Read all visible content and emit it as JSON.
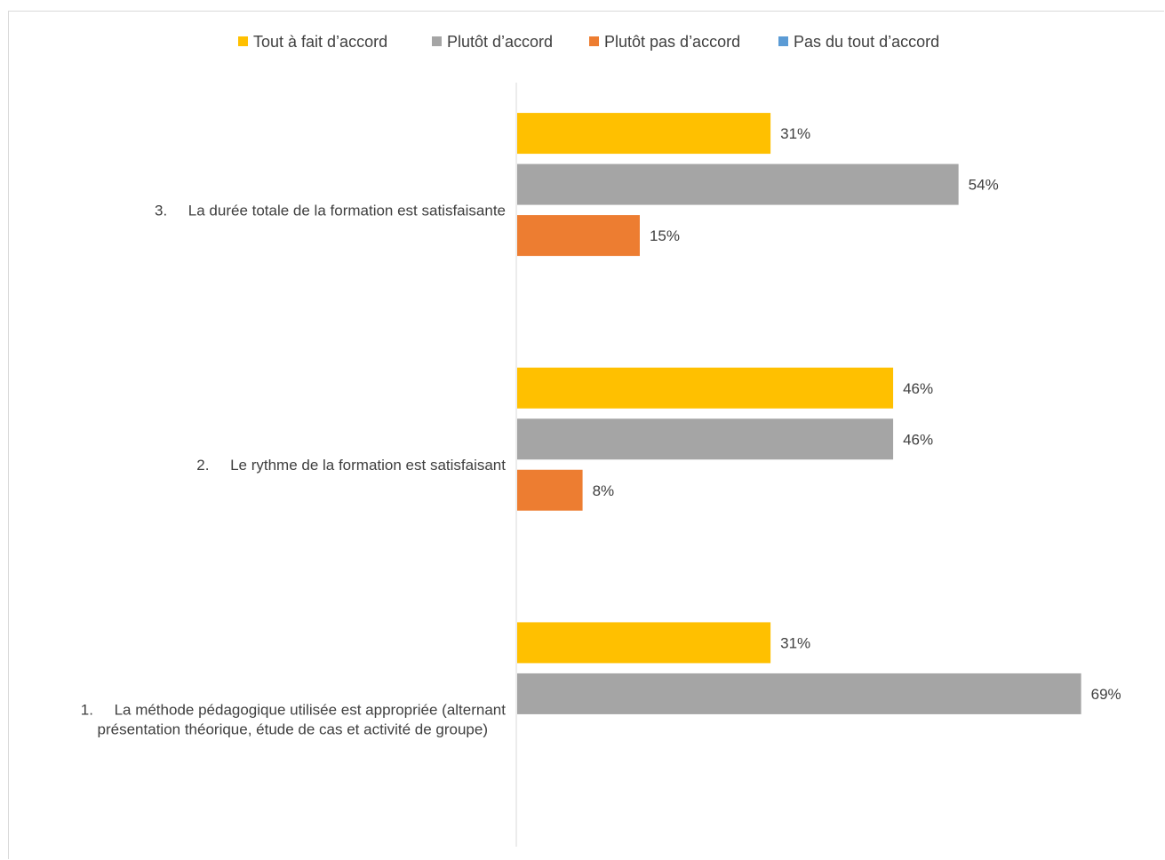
{
  "chart_data": {
    "type": "bar",
    "orientation": "horizontal",
    "title": "",
    "xlabel": "",
    "ylabel": "",
    "xlim": [
      0,
      0.76
    ],
    "grid": false,
    "legend_position": "top",
    "categories": [
      {
        "number": "1.",
        "lines": [
          "La méthode pédagogique utilisée est appropriée (alternant",
          "présentation théorique, étude de cas et activité de groupe)"
        ]
      },
      {
        "number": "2.",
        "lines": [
          "Le rythme de la formation est satisfaisant"
        ]
      },
      {
        "number": "3.",
        "lines": [
          "La durée totale de la formation est satisfaisante"
        ]
      }
    ],
    "series": [
      {
        "name": "Tout à fait d’accord",
        "color": "#FFC000",
        "values": [
          0.31,
          0.46,
          0.31
        ],
        "labels": [
          "31%",
          "46%",
          "31%"
        ]
      },
      {
        "name": "Plutôt d’accord",
        "color": "#A5A5A5",
        "values": [
          0.69,
          0.46,
          0.54
        ],
        "labels": [
          "69%",
          "46%",
          "54%"
        ]
      },
      {
        "name": "Plutôt pas d’accord",
        "color": "#ED7D31",
        "values": [
          null,
          0.08,
          0.15
        ],
        "labels": [
          "",
          "8%",
          "15%"
        ]
      },
      {
        "name": "Pas du tout d’accord",
        "color": "#5B9BD5",
        "values": [
          null,
          null,
          null
        ],
        "labels": [
          "",
          "",
          ""
        ]
      }
    ]
  }
}
